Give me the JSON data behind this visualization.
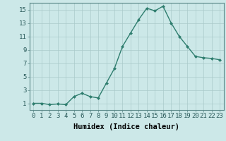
{
  "x": [
    0,
    1,
    2,
    3,
    4,
    5,
    6,
    7,
    8,
    9,
    10,
    11,
    12,
    13,
    14,
    15,
    16,
    17,
    18,
    19,
    20,
    21,
    22,
    23
  ],
  "y": [
    1.0,
    1.0,
    0.8,
    0.9,
    0.8,
    2.0,
    2.5,
    2.0,
    1.8,
    4.0,
    6.2,
    9.5,
    11.5,
    13.5,
    15.2,
    14.8,
    15.5,
    13.0,
    11.0,
    9.5,
    8.0,
    7.8,
    7.7,
    7.5
  ],
  "line_color": "#2e7d6e",
  "marker_color": "#2e7d6e",
  "bg_color": "#cce8e8",
  "grid_color": "#aacaca",
  "xlabel": "Humidex (Indice chaleur)",
  "xlim": [
    -0.5,
    23.5
  ],
  "ylim": [
    0,
    16
  ],
  "yticks": [
    1,
    3,
    5,
    7,
    9,
    11,
    13,
    15
  ],
  "xticks": [
    0,
    1,
    2,
    3,
    4,
    5,
    6,
    7,
    8,
    9,
    10,
    11,
    12,
    13,
    14,
    15,
    16,
    17,
    18,
    19,
    20,
    21,
    22,
    23
  ],
  "xlabel_fontsize": 7.5,
  "tick_fontsize": 6.5,
  "line_width": 1.0,
  "marker_size": 2.5
}
